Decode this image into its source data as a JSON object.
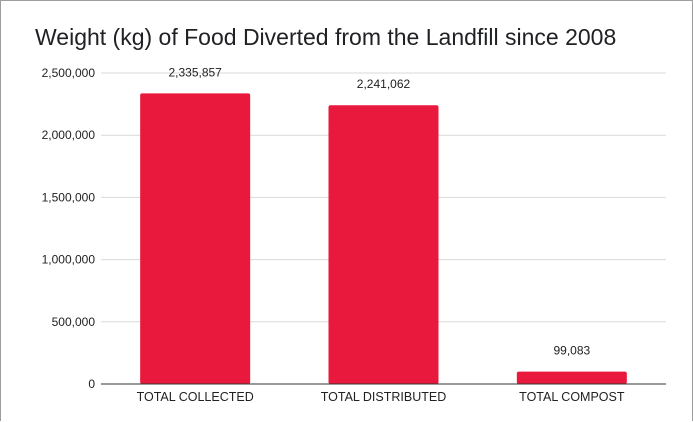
{
  "chart_data": {
    "type": "bar",
    "title": "Weight (kg) of Food Diverted from the Landfill since 2008",
    "xlabel": "",
    "ylabel": "",
    "categories": [
      "TOTAL COLLECTED",
      "TOTAL DISTRIBUTED",
      "TOTAL COMPOST"
    ],
    "values": [
      2335857,
      2241062,
      99083
    ],
    "data_labels": [
      "2,335,857",
      "2,241,062",
      "99,083"
    ],
    "ylim": [
      0,
      2500000
    ],
    "yticks": [
      0,
      500000,
      1000000,
      1500000,
      2000000,
      2500000
    ],
    "ytick_labels": [
      "0",
      "500,000",
      "1,000,000",
      "1,500,000",
      "2,000,000",
      "2,500,000"
    ],
    "grid": true,
    "legend": "none",
    "colors": {
      "bar": "#e8193c",
      "grid": "#d9d9d9",
      "axis": "#333333"
    }
  }
}
